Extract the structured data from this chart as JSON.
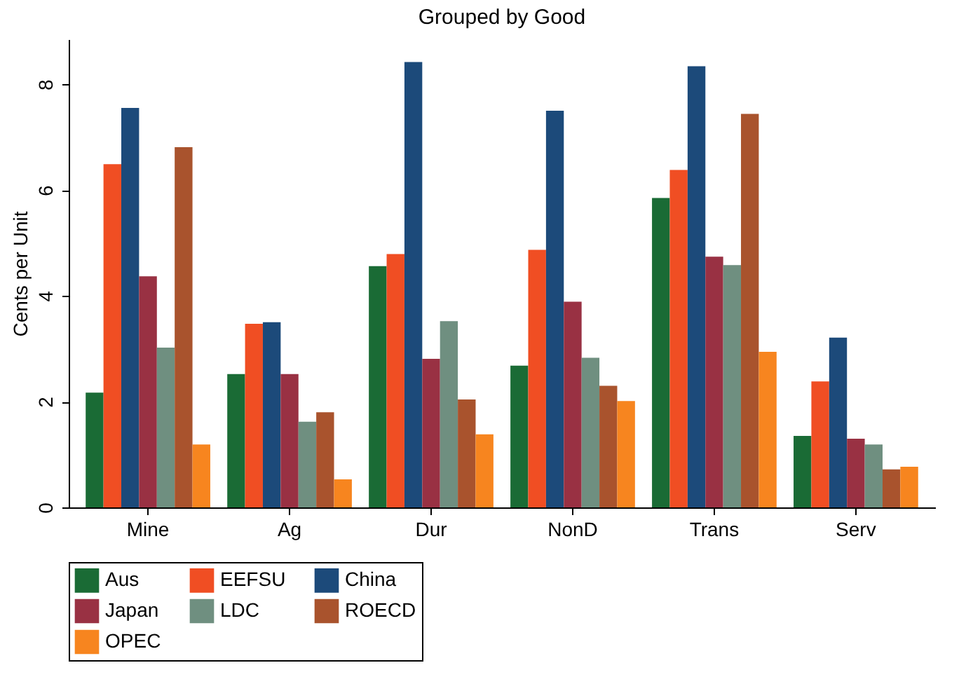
{
  "chart_data": {
    "type": "bar",
    "title": "Grouped by Good",
    "ylabel": "Cents per Unit",
    "categories": [
      "Mine",
      "Ag",
      "Dur",
      "NonD",
      "Trans",
      "Serv"
    ],
    "series": [
      {
        "name": "Aus",
        "color": "#1a6b35",
        "values": [
          2.17,
          2.52,
          4.56,
          2.68,
          5.85,
          1.35
        ]
      },
      {
        "name": "EEFSU",
        "color": "#f04e23",
        "values": [
          6.49,
          3.47,
          4.79,
          4.87,
          6.38,
          2.38
        ]
      },
      {
        "name": "China",
        "color": "#1c4a7a",
        "values": [
          7.55,
          3.5,
          8.42,
          7.5,
          8.34,
          3.21
        ]
      },
      {
        "name": "Japan",
        "color": "#993143",
        "values": [
          4.37,
          2.52,
          2.81,
          3.89,
          4.74,
          1.3
        ]
      },
      {
        "name": "LDC",
        "color": "#6f8f80",
        "values": [
          3.02,
          1.62,
          3.52,
          2.83,
          4.58,
          1.19
        ]
      },
      {
        "name": "ROECD",
        "color": "#a9532d",
        "values": [
          6.81,
          1.8,
          2.04,
          2.3,
          7.44,
          0.72
        ]
      },
      {
        "name": "OPEC",
        "color": "#f7851f",
        "values": [
          1.19,
          0.53,
          1.38,
          2.01,
          2.94,
          0.77
        ]
      }
    ],
    "ylim": [
      0,
      8.85
    ],
    "yticks": [
      0,
      2,
      4,
      6,
      8
    ],
    "grid": false,
    "legend": "bottom"
  }
}
